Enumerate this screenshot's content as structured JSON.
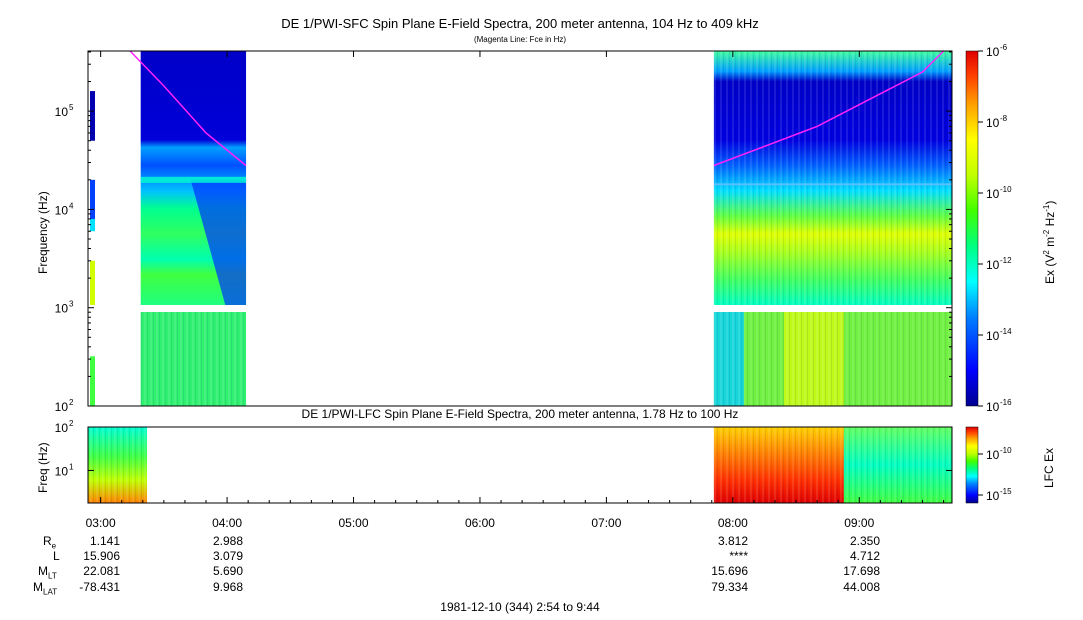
{
  "top_panel": {
    "title": "DE 1/PWI-SFC  Spin Plane E-Field Spectra, 200 meter antenna, 104 Hz to 409 kHz",
    "subtitle": "(Magenta Line: Fce in Hz)",
    "ylabel": "Frequency (Hz)",
    "yticks": [
      "10",
      "10",
      "10",
      "10"
    ],
    "yexps": [
      "5",
      "4",
      "3",
      "2"
    ],
    "colorbar_label_main": "Ex (V",
    "colorbar_label_unit": " m",
    "colorbar_label_tail": " Hz",
    "colorbar_sup1": "2",
    "colorbar_sup2": "-2",
    "colorbar_sup3": "-1",
    "colorbar_ticks": [
      "10",
      "10",
      "10",
      "10",
      "10",
      "10"
    ],
    "colorbar_exps": [
      "-6",
      "-8",
      "-10",
      "-12",
      "-14",
      "-16"
    ]
  },
  "bottom_panel": {
    "title": "DE 1/PWI-LFC  Spin Plane E-Field Spectra, 200 meter antenna, 1.78 Hz to 100 Hz",
    "ylabel": "Freq (Hz)",
    "yticks": [
      "10",
      "10"
    ],
    "yexps": [
      "2",
      "1"
    ],
    "colorbar_label": "LFC Ex",
    "colorbar_ticks": [
      "10",
      "10"
    ],
    "colorbar_exps": [
      "-10",
      "-15"
    ]
  },
  "time_axis": {
    "ticks": [
      "03:00",
      "04:00",
      "05:00",
      "06:00",
      "07:00",
      "08:00",
      "09:00"
    ]
  },
  "orbit": {
    "labels": {
      "re": "R",
      "re_sub": "e",
      "l": "L",
      "mlt": "M",
      "mlt_sub": "LT",
      "mlat": "M",
      "mlat_sub": "LAT"
    },
    "columns": [
      {
        "re": "1.141",
        "l": "15.906",
        "mlt": "22.081",
        "mlat": "-78.431"
      },
      {
        "re": "2.988",
        "l": "3.079",
        "mlt": "5.690",
        "mlat": "9.968"
      },
      {
        "re": "3.812",
        "l": "****",
        "mlt": "15.696",
        "mlat": "79.334"
      },
      {
        "re": "2.350",
        "l": "4.712",
        "mlt": "17.698",
        "mlat": "44.008"
      }
    ]
  },
  "footer": "1981-12-10 (344) 2:54 to 9:44",
  "colors": {
    "magenta_line": "#ff22ff",
    "colormap": [
      "#00008f",
      "#0000ff",
      "#0080ff",
      "#00ffff",
      "#00ff80",
      "#40ff00",
      "#c0ff00",
      "#ffff00",
      "#ffa000",
      "#ff4000",
      "#e00000"
    ]
  },
  "chart_data": [
    {
      "type": "heatmap",
      "title": "DE 1/PWI-SFC  Spin Plane E-Field Spectra, 200 meter antenna, 104 Hz to 409 kHz",
      "subtitle": "(Magenta Line: Fce in Hz)",
      "xlabel": "",
      "ylabel": "Frequency (Hz)",
      "y_scale": "log",
      "ylim": [
        100,
        409000
      ],
      "xlim": [
        "02:54",
        "09:44"
      ],
      "colorbar": {
        "label": "Ex (V2 m-2 Hz-1)",
        "scale": "log",
        "range": [
          1e-16,
          1e-06
        ]
      },
      "data_segments": [
        {
          "start": "02:54",
          "end": "02:55",
          "description_level": "low"
        },
        {
          "start": "03:19",
          "end": "04:09"
        },
        {
          "start": "07:51",
          "end": "09:44"
        }
      ],
      "fce_line": {
        "series": [
          {
            "time": "03:14",
            "fce_hz": 409000
          },
          {
            "time": "03:30",
            "fce_hz": 180000
          },
          {
            "time": "03:50",
            "fce_hz": 60000
          },
          {
            "time": "04:09",
            "fce_hz": 28000
          },
          {
            "time": "07:51",
            "fce_hz": 28000
          },
          {
            "time": "08:40",
            "fce_hz": 70000
          },
          {
            "time": "09:30",
            "fce_hz": 250000
          },
          {
            "time": "09:40",
            "fce_hz": 409000
          }
        ]
      }
    },
    {
      "type": "heatmap",
      "title": "DE 1/PWI-LFC  Spin Plane E-Field Spectra, 200 meter antenna, 1.78 Hz to 100 Hz",
      "ylabel": "Freq (Hz)",
      "y_scale": "log",
      "ylim": [
        1.78,
        100
      ],
      "colorbar": {
        "label": "LFC Ex",
        "scale": "log",
        "range": [
          1e-17,
          1e-07
        ]
      },
      "data_segments": [
        {
          "start": "02:54",
          "end": "03:22"
        },
        {
          "start": "07:51",
          "end": "09:44"
        }
      ]
    }
  ]
}
